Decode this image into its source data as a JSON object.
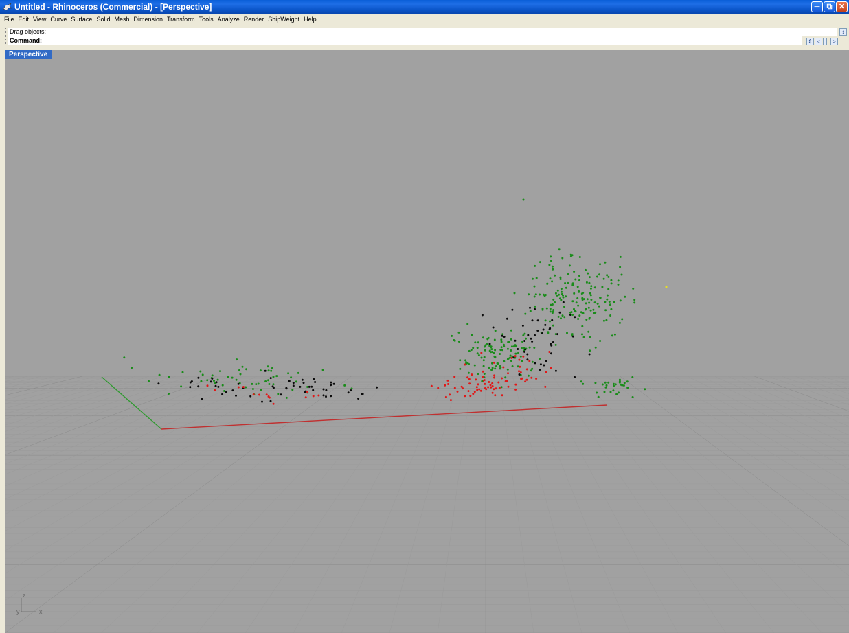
{
  "window": {
    "title": "Untitled - Rhinoceros (Commercial) - [Perspective]"
  },
  "menu": [
    "File",
    "Edit",
    "View",
    "Curve",
    "Surface",
    "Solid",
    "Mesh",
    "Dimension",
    "Transform",
    "Tools",
    "Analyze",
    "Render",
    "ShipWeight",
    "Help"
  ],
  "command": {
    "history": "Drag objects:",
    "prompt": "Command:",
    "value": ""
  },
  "viewport": {
    "tab": "Perspective"
  },
  "axes": {
    "z": "z",
    "y": "y",
    "x": "x"
  },
  "colors": {
    "grid_bg": "#a1a1a1",
    "x_axis": "#c03030",
    "y_axis": "#2f9a2f",
    "point_green": "#1a8c1a",
    "point_black": "#0a0a0a",
    "point_red": "#e01818",
    "point_yellow": "#e8e020"
  }
}
